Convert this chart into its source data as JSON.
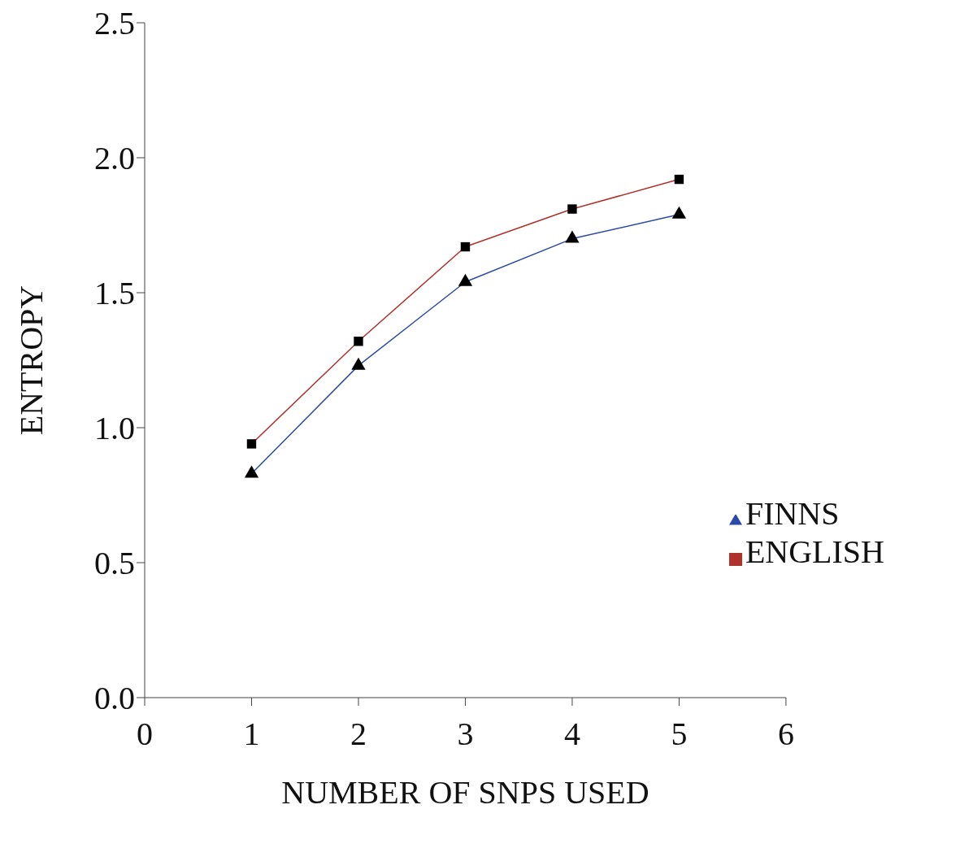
{
  "chart_data": {
    "type": "line",
    "xlabel": "NUMBER OF SNPS USED",
    "ylabel": "ENTROPY",
    "x": [
      1,
      2,
      3,
      4,
      5
    ],
    "series": [
      {
        "name": "FINNS",
        "color": "#2a4aa8",
        "marker": "triangle",
        "values": [
          0.83,
          1.23,
          1.54,
          1.7,
          1.79
        ]
      },
      {
        "name": "ENGLISH",
        "color": "#b0302a",
        "marker": "square",
        "values": [
          0.94,
          1.32,
          1.67,
          1.81,
          1.92
        ]
      }
    ],
    "xlim": [
      0,
      6
    ],
    "xticks": [
      0,
      1,
      2,
      3,
      4,
      5,
      6
    ],
    "ylim": [
      0,
      2.5
    ],
    "yticks": [
      {
        "value": 0,
        "label": "0.0"
      },
      0.5,
      {
        "value": 1,
        "label": "1.0"
      },
      1.5,
      {
        "value": 2,
        "label": "2.0"
      },
      2.5
    ],
    "grid": false,
    "legend": "right",
    "line_style": "solid"
  }
}
